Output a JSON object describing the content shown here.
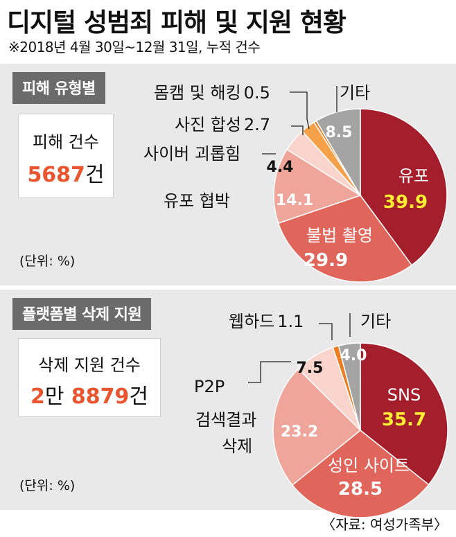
{
  "title": "디지털 성범죄 피해 및 지원 현황",
  "subtitle": "※2018년 4월 30일~12월 31일, 누적 건수",
  "source": "〈자료: 여성가족부〉",
  "colors": {
    "slice_main": "#a51e2c",
    "slice_second": "#e0665c",
    "slice_third": "#f0a59a",
    "slice_light": "#f9d4cd",
    "slice_orange": "#f5a14a",
    "slice_orange_dark": "#ec7d21",
    "slice_other": "#a4a4a4",
    "highlight_text": "#ffee33",
    "accent_number": "#e8552f"
  },
  "chart_data": [
    {
      "type": "pie",
      "section_label": "피해 유형별",
      "count_label": "피해 건수",
      "count_value": "5687",
      "count_unit": "건",
      "unit_note": "(단위: %)",
      "slices": [
        {
          "label": "유포",
          "value": 39.9,
          "color": "#a51e2c",
          "label_color": "#ffffff",
          "value_color": "#ffee33"
        },
        {
          "label": "불법 촬영",
          "value": 29.9,
          "color": "#e0665c",
          "label_color": "#ffffff",
          "value_color": "#ffffff"
        },
        {
          "label": "유포 협박",
          "value": 14.1,
          "color": "#f0a59a",
          "label_color": "#111111",
          "value_color": "#ffffff"
        },
        {
          "label": "사이버 괴롭힘",
          "value": 4.4,
          "color": "#f9d4cd",
          "label_color": "#111111",
          "value_color": "#111111"
        },
        {
          "label": "사진 합성",
          "value": 2.7,
          "color": "#f5a14a",
          "label_color": "#111111",
          "value_color": "#111111"
        },
        {
          "label": "몸캠 및 해킹",
          "value": 0.5,
          "color": "#ec7d21",
          "label_color": "#111111",
          "value_color": "#111111"
        },
        {
          "label": "기타",
          "value": 8.5,
          "color": "#a4a4a4",
          "label_color": "#111111",
          "value_color": "#ffffff"
        }
      ]
    },
    {
      "type": "pie",
      "section_label": "플랫폼별 삭제 지원",
      "count_label": "삭제 지원 건수",
      "count_value_a": "2",
      "count_value_a_unit": "만",
      "count_value_b": "8879",
      "count_unit": "건",
      "unit_note": "(단위: %)",
      "slices": [
        {
          "label": "SNS",
          "value": 35.7,
          "color": "#a51e2c",
          "label_color": "#ffffff",
          "value_color": "#ffee33"
        },
        {
          "label": "성인 사이트",
          "value": 28.5,
          "color": "#e0665c",
          "label_color": "#ffffff",
          "value_color": "#ffffff"
        },
        {
          "label": "검색결과\n삭제",
          "value": 23.2,
          "color": "#f0a59a",
          "label_color": "#111111",
          "value_color": "#ffffff"
        },
        {
          "label": "P2P",
          "value": 7.5,
          "color": "#f9d4cd",
          "label_color": "#111111",
          "value_color": "#111111"
        },
        {
          "label": "웹하드",
          "value": 1.1,
          "color": "#ec7d21",
          "label_color": "#111111",
          "value_color": "#111111"
        },
        {
          "label": "기타",
          "value": 4.0,
          "color": "#a4a4a4",
          "label_color": "#111111",
          "value_color": "#ffffff"
        }
      ]
    }
  ]
}
